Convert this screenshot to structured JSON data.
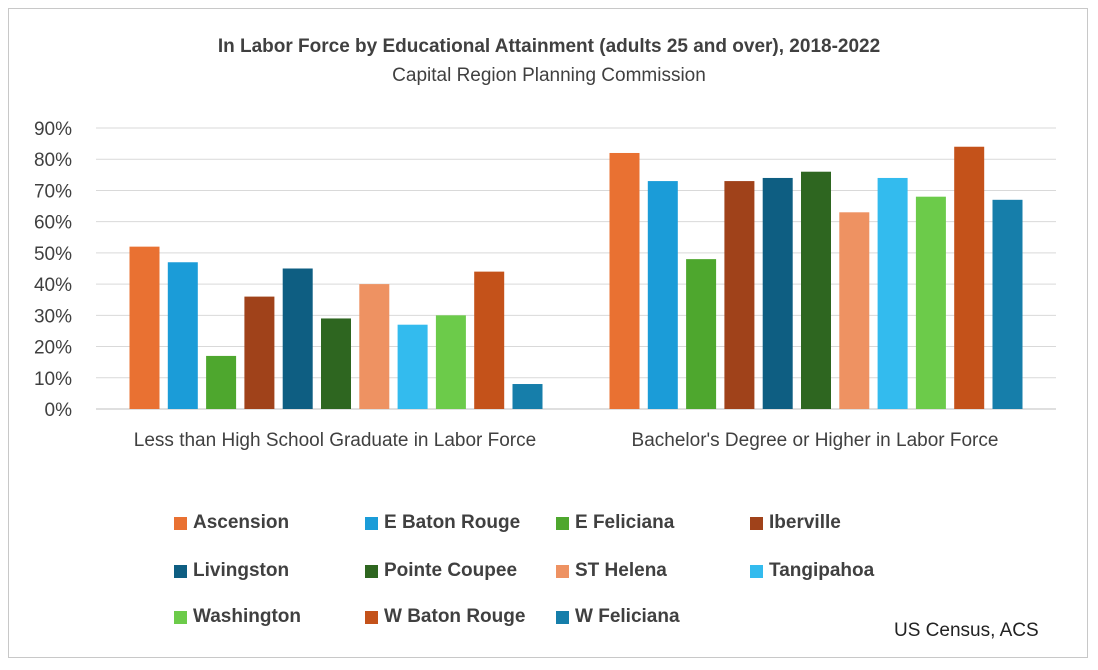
{
  "chart_data": {
    "type": "bar",
    "title": "In Labor Force by Educational Attainment (adults 25 and over), 2018-2022",
    "subtitle": "Capital Region Planning Commission",
    "source": "US Census, ACS",
    "categories": [
      "Less than High School Graduate in Labor Force",
      "Bachelor's Degree or Higher in Labor Force"
    ],
    "ylim": [
      0,
      90
    ],
    "yticks": [
      "0%",
      "10%",
      "20%",
      "30%",
      "40%",
      "50%",
      "60%",
      "70%",
      "80%",
      "90%"
    ],
    "grid": true,
    "legend_position": "bottom",
    "series": [
      {
        "name": "Ascension",
        "color": "#E97132",
        "values": [
          52,
          82
        ]
      },
      {
        "name": "E Baton Rouge",
        "color": "#1B9CD8",
        "values": [
          47,
          73
        ]
      },
      {
        "name": "E Feliciana",
        "color": "#4EA72E",
        "values": [
          17,
          48
        ]
      },
      {
        "name": "Iberville",
        "color": "#A0421A",
        "values": [
          36,
          73
        ]
      },
      {
        "name": "Livingston",
        "color": "#0E5E82",
        "values": [
          45,
          74
        ]
      },
      {
        "name": "Pointe Coupee",
        "color": "#2E6620",
        "values": [
          29,
          76
        ]
      },
      {
        "name": "ST Helena",
        "color": "#EE9262",
        "values": [
          40,
          63
        ]
      },
      {
        "name": "Tangipahoa",
        "color": "#33BBEE",
        "values": [
          27,
          74
        ]
      },
      {
        "name": "Washington",
        "color": "#6CCB4A",
        "values": [
          30,
          68
        ]
      },
      {
        "name": "W Baton Rouge",
        "color": "#C4521A",
        "values": [
          44,
          84
        ]
      },
      {
        "name": "W Feliciana",
        "color": "#167EAA",
        "values": [
          8,
          67
        ]
      }
    ]
  }
}
